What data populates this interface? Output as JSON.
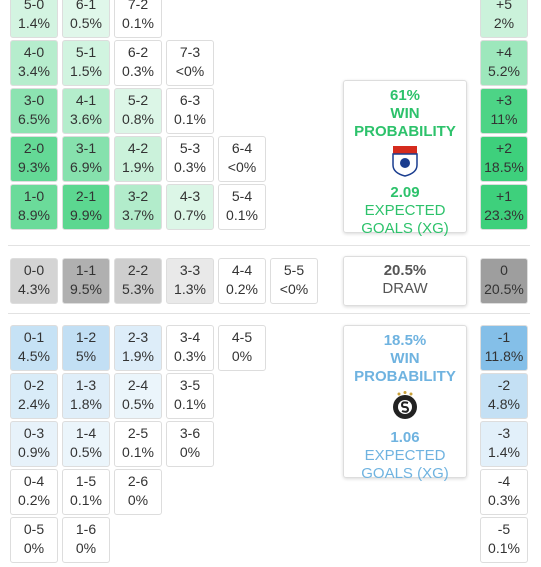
{
  "home": {
    "rows": [
      {
        "cells": [
          [
            "5-0",
            "1.4%"
          ],
          [
            "6-1",
            "0.5%"
          ],
          [
            "7-2",
            "0.1%"
          ]
        ],
        "margin": [
          "+5",
          "2%"
        ]
      },
      {
        "cells": [
          [
            "4-0",
            "3.4%"
          ],
          [
            "5-1",
            "1.5%"
          ],
          [
            "6-2",
            "0.3%"
          ],
          [
            "7-3",
            "<0%"
          ]
        ],
        "margin": [
          "+4",
          "5.2%"
        ]
      },
      {
        "cells": [
          [
            "3-0",
            "6.5%"
          ],
          [
            "4-1",
            "3.6%"
          ],
          [
            "5-2",
            "0.8%"
          ],
          [
            "6-3",
            "0.1%"
          ]
        ],
        "margin": [
          "+3",
          "11%"
        ]
      },
      {
        "cells": [
          [
            "2-0",
            "9.3%"
          ],
          [
            "3-1",
            "6.9%"
          ],
          [
            "4-2",
            "1.9%"
          ],
          [
            "5-3",
            "0.3%"
          ],
          [
            "6-4",
            "<0%"
          ]
        ],
        "margin": [
          "+2",
          "18.5%"
        ]
      },
      {
        "cells": [
          [
            "1-0",
            "8.9%"
          ],
          [
            "2-1",
            "9.9%"
          ],
          [
            "3-2",
            "3.7%"
          ],
          [
            "4-3",
            "0.7%"
          ],
          [
            "5-4",
            "0.1%"
          ]
        ],
        "margin": [
          "+1",
          "23.3%"
        ]
      }
    ],
    "summary": {
      "probability": "61%",
      "probability_label": "WIN PROBABILITY",
      "xg": "2.09",
      "xg_label": "EXPECTED GOALS (XG)"
    }
  },
  "draw": {
    "rows": [
      {
        "cells": [
          [
            "0-0",
            "4.3%"
          ],
          [
            "1-1",
            "9.5%"
          ],
          [
            "2-2",
            "5.3%"
          ],
          [
            "3-3",
            "1.3%"
          ],
          [
            "4-4",
            "0.2%"
          ],
          [
            "5-5",
            "<0%"
          ]
        ],
        "margin": [
          "0",
          "20.5%"
        ]
      }
    ],
    "summary": {
      "probability": "20.5%",
      "probability_label": "DRAW"
    }
  },
  "away": {
    "rows": [
      {
        "cells": [
          [
            "0-1",
            "4.5%"
          ],
          [
            "1-2",
            "5%"
          ],
          [
            "2-3",
            "1.9%"
          ],
          [
            "3-4",
            "0.3%"
          ],
          [
            "4-5",
            "0%"
          ]
        ],
        "margin": [
          "-1",
          "11.8%"
        ]
      },
      {
        "cells": [
          [
            "0-2",
            "2.4%"
          ],
          [
            "1-3",
            "1.8%"
          ],
          [
            "2-4",
            "0.5%"
          ],
          [
            "3-5",
            "0.1%"
          ]
        ],
        "margin": [
          "-2",
          "4.8%"
        ]
      },
      {
        "cells": [
          [
            "0-3",
            "0.9%"
          ],
          [
            "1-4",
            "0.5%"
          ],
          [
            "2-5",
            "0.1%"
          ],
          [
            "3-6",
            "0%"
          ]
        ],
        "margin": [
          "-3",
          "1.4%"
        ]
      },
      {
        "cells": [
          [
            "0-4",
            "0.2%"
          ],
          [
            "1-5",
            "0.1%"
          ],
          [
            "2-6",
            "0%"
          ]
        ],
        "margin": [
          "-4",
          "0.3%"
        ]
      },
      {
        "cells": [
          [
            "0-5",
            "0%"
          ],
          [
            "1-6",
            "0%"
          ]
        ],
        "margin": [
          "-5",
          "0.1%"
        ]
      }
    ],
    "summary": {
      "probability": "18.5%",
      "probability_label": "WIN PROBABILITY",
      "xg": "1.06",
      "xg_label": "EXPECTED GOALS (XG)"
    }
  }
}
